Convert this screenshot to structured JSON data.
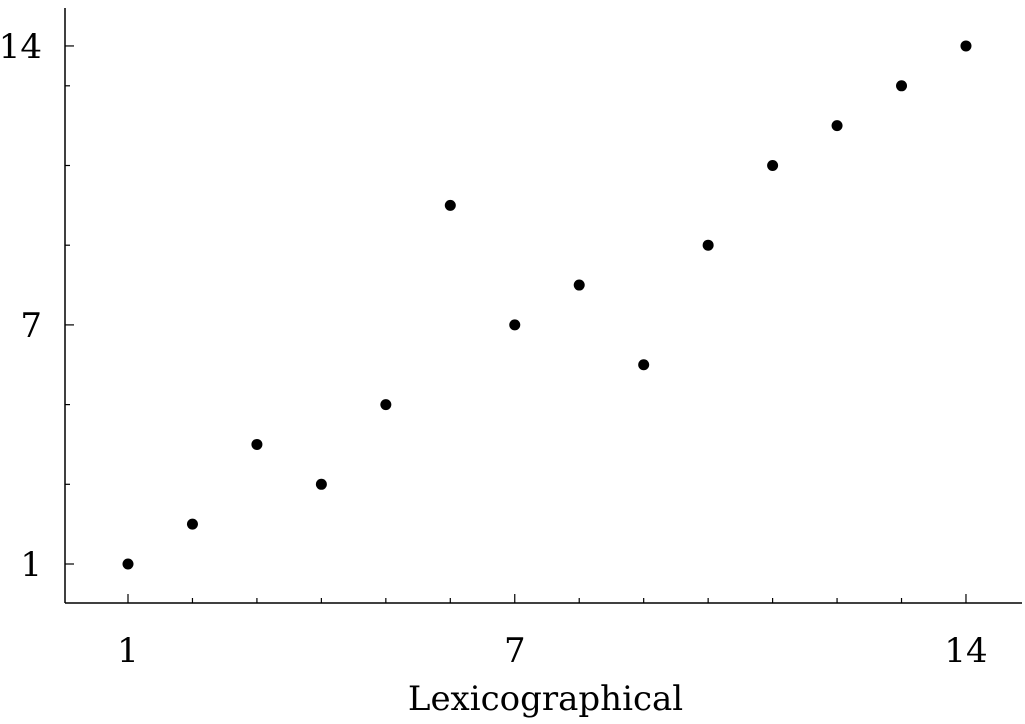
{
  "chart_data": {
    "type": "scatter",
    "title": "",
    "xlabel": "Lexicographical",
    "ylabel": "",
    "xlim": [
      0,
      14.9
    ],
    "ylim": [
      0,
      14.2
    ],
    "x_ticks": [
      {
        "value": 1,
        "label": "1"
      },
      {
        "value": 7,
        "label": "7"
      },
      {
        "value": 14,
        "label": "14"
      }
    ],
    "y_ticks": [
      {
        "value": 1,
        "label": "1"
      },
      {
        "value": 7,
        "label": "7"
      },
      {
        "value": 14,
        "label": "14"
      }
    ],
    "x_minor_ticks": [
      2,
      3,
      4,
      5,
      6,
      8,
      9,
      10,
      11,
      12,
      13
    ],
    "y_minor_ticks": [
      3,
      5,
      9,
      11,
      13
    ],
    "grid": false,
    "marker_color": "#000000",
    "series": [
      {
        "x": [
          1,
          2,
          3,
          4,
          5,
          6,
          7,
          8,
          9,
          10,
          11,
          12,
          13,
          14
        ],
        "y": [
          1,
          2,
          4,
          3,
          5,
          10,
          7,
          8,
          6,
          9,
          11,
          12,
          13,
          14
        ]
      }
    ]
  }
}
